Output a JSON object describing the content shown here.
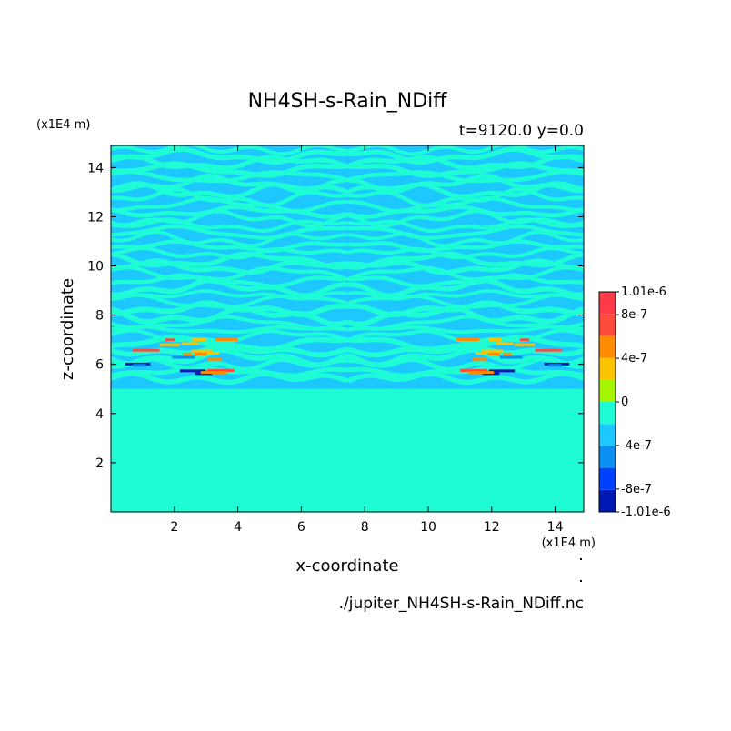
{
  "chart_data": {
    "type": "heatmap",
    "title": "NH4SH-s-Rain_NDiff",
    "subtitle": "t=9120.0 y=0.0",
    "xlabel": "x-coordinate",
    "ylabel": "z-coordinate",
    "x_unit": "(x1E4 m)",
    "y_unit": "(x1E4 m)",
    "file_label": "./jupiter_NH4SH-s-Rain_NDiff.nc",
    "xlim": [
      0.0,
      14.9
    ],
    "ylim": [
      0.0,
      14.9
    ],
    "x_ticks": [
      2,
      4,
      6,
      8,
      10,
      12,
      14
    ],
    "y_ticks": [
      2,
      4,
      6,
      8,
      10,
      12,
      14
    ],
    "colorbar": {
      "levels": [
        -1.01e-06,
        -8e-07,
        -6e-07,
        -4e-07,
        -2e-07,
        0,
        2e-07,
        4e-07,
        6e-07,
        8e-07,
        1.01e-06
      ],
      "colors": [
        "#0019b4",
        "#0040ff",
        "#0a90f0",
        "#1cc8ff",
        "#1efcd6",
        "#a6f500",
        "#fcc400",
        "#ff8c00",
        "#ff4a3c",
        "#ff3b4a"
      ],
      "tick_labels": [
        {
          "value": 1.01e-06,
          "label": "1.01e-6"
        },
        {
          "value": 8e-07,
          "label": "8e-7"
        },
        {
          "value": 4e-07,
          "label": "4e-7"
        },
        {
          "value": 0,
          "label": "0"
        },
        {
          "value": -4e-07,
          "label": "-4e-7"
        },
        {
          "value": -8e-07,
          "label": "-8e-7"
        },
        {
          "value": -1.01e-06,
          "label": "-1.01e-6"
        }
      ]
    },
    "field_summary": {
      "background_value": 0,
      "lower_region_z_max": 5.0,
      "banded_region_z_min": 5.0,
      "banded_region_z_max": 14.9,
      "band_values": [
        -2e-07,
        0
      ],
      "extreme_value_z_range": [
        5.6,
        7.1
      ]
    }
  }
}
